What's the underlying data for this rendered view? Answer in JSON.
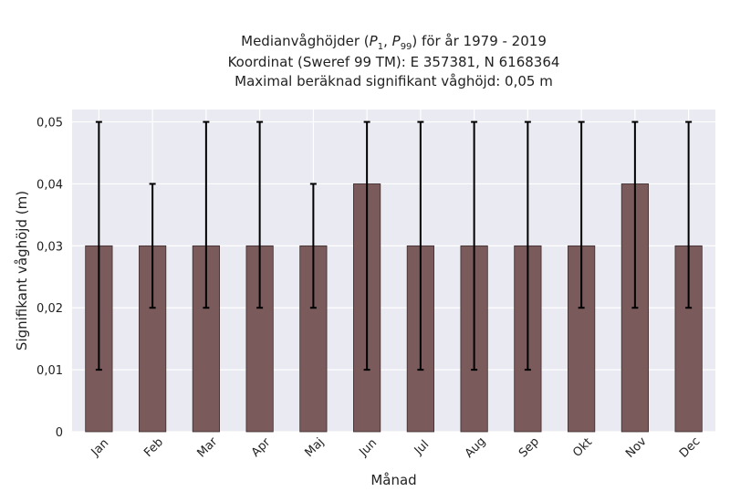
{
  "chart_data": {
    "type": "bar",
    "title_lines": [
      "Medianvåghöjder (P1, P99) för år 1979 - 2019",
      "Koordinat (Sweref 99 TM): E 357381, N 6168364",
      "Maximal beräknad signifikant våghöjd: 0,05 m"
    ],
    "title_math": {
      "prefix": "Medianvåghöjder (",
      "p": "P",
      "sub1": "1",
      "sep": ", ",
      "sub2": "99",
      "suffix": ") för år 1979 - 2019"
    },
    "xlabel": "Månad",
    "ylabel": "Signifikant våghöjd (m)",
    "categories": [
      "Jan",
      "Feb",
      "Mar",
      "Apr",
      "Maj",
      "Jun",
      "Jul",
      "Aug",
      "Sep",
      "Okt",
      "Nov",
      "Dec"
    ],
    "values": [
      0.03,
      0.03,
      0.03,
      0.03,
      0.03,
      0.04,
      0.03,
      0.03,
      0.03,
      0.03,
      0.04,
      0.03
    ],
    "err_low": [
      0.01,
      0.02,
      0.02,
      0.02,
      0.02,
      0.01,
      0.01,
      0.01,
      0.01,
      0.02,
      0.02,
      0.02
    ],
    "err_high": [
      0.05,
      0.04,
      0.05,
      0.05,
      0.04,
      0.05,
      0.05,
      0.05,
      0.05,
      0.05,
      0.05,
      0.05
    ],
    "ylim": [
      0,
      0.052
    ],
    "yticks": [
      0,
      0.01,
      0.02,
      0.03,
      0.04,
      0.05
    ],
    "ytick_labels": [
      "0",
      "0,01",
      "0,02",
      "0,03",
      "0,04",
      "0,05"
    ],
    "grid": true,
    "colors": {
      "bar": "#7a5a5a",
      "bar_edge": "#3a2a2a",
      "errorbar": "#000000",
      "background": "#eaeaf2",
      "grid": "#ffffff"
    }
  }
}
